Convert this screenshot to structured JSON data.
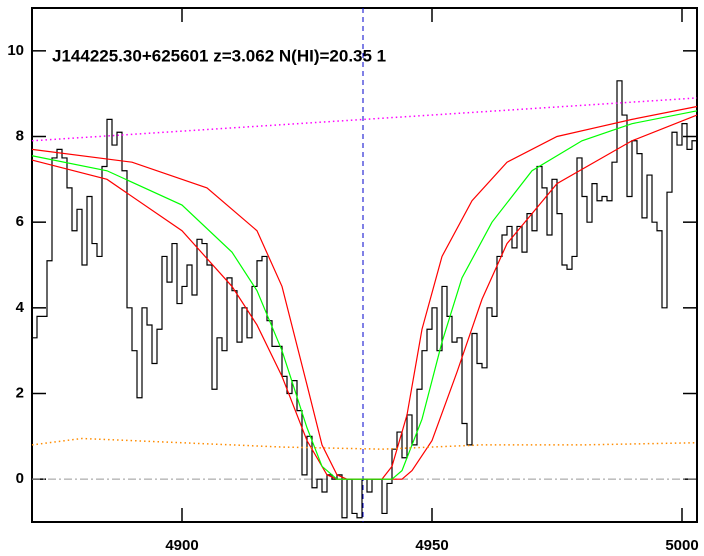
{
  "chart_data": {
    "type": "line",
    "title": "J144225.30+625601 z=3.062 N(HI)=20.35 1",
    "xlim": [
      4870,
      5003
    ],
    "ylim": [
      -1,
      11
    ],
    "xticks": [
      4900,
      4950,
      5000
    ],
    "yticks": [
      0,
      2,
      4,
      6,
      8,
      10
    ],
    "series": [
      {
        "color": "#000000",
        "line_style": "step",
        "x": [
          4870,
          4871,
          4872,
          4873,
          4874,
          4875,
          4876,
          4877,
          4878,
          4879,
          4880,
          4881,
          4882,
          4883,
          4884,
          4885,
          4886,
          4887,
          4888,
          4889,
          4890,
          4891,
          4892,
          4893,
          4894,
          4895,
          4896,
          4897,
          4898,
          4899,
          4900,
          4901,
          4902,
          4903,
          4904,
          4905,
          4906,
          4907,
          4908,
          4909,
          4910,
          4911,
          4912,
          4913,
          4914,
          4915,
          4916,
          4917,
          4918,
          4919,
          4920,
          4921,
          4922,
          4923,
          4924,
          4925,
          4926,
          4927,
          4928,
          4929,
          4930,
          4931,
          4932,
          4933,
          4934,
          4935,
          4936,
          4937,
          4938,
          4939,
          4940,
          4941,
          4942,
          4943,
          4944,
          4945,
          4946,
          4947,
          4948,
          4949,
          4950,
          4951,
          4952,
          4953,
          4954,
          4955,
          4956,
          4957,
          4958,
          4959,
          4960,
          4961,
          4962,
          4963,
          4964,
          4965,
          4966,
          4967,
          4968,
          4969,
          4970,
          4971,
          4972,
          4973,
          4974,
          4975,
          4976,
          4977,
          4978,
          4979,
          4980,
          4981,
          4982,
          4983,
          4984,
          4985,
          4986,
          4987,
          4988,
          4989,
          4990,
          4991,
          4992,
          4993,
          4994,
          4995,
          4996,
          4997,
          4998,
          4999,
          5000,
          5001,
          5002
        ],
        "values": [
          3.3,
          3.8,
          3.8,
          5.1,
          7.5,
          7.7,
          7.5,
          6.8,
          5.8,
          6.3,
          5.0,
          6.6,
          5.5,
          5.2,
          7.3,
          8.4,
          7.8,
          8.1,
          7.2,
          4.0,
          3.0,
          1.9,
          4.0,
          3.6,
          2.7,
          3.5,
          5.2,
          4.6,
          5.5,
          4.1,
          4.5,
          5.0,
          4.3,
          5.6,
          5.5,
          5.0,
          2.1,
          3.3,
          3.0,
          4.7,
          4.4,
          3.2,
          4.0,
          3.3,
          4.5,
          5.1,
          5.2,
          3.7,
          3.1,
          3.1,
          2.4,
          2.0,
          2.3,
          1.6,
          0.1,
          1.0,
          -0.2,
          0.0,
          -0.3,
          0.1,
          0.0,
          0.1,
          -0.9,
          0.0,
          -0.8,
          -0.9,
          0.0,
          -0.3,
          0.0,
          0.0,
          -0.8,
          -0.1,
          0.7,
          1.1,
          0.5,
          1.5,
          0.8,
          2.1,
          3.0,
          3.5,
          4.0,
          3.0,
          4.5,
          3.8,
          3.2,
          3.3,
          1.3,
          0.8,
          3.4,
          2.7,
          2.6,
          4.0,
          3.8,
          5.2,
          5.7,
          5.9,
          5.4,
          5.9,
          5.3,
          6.2,
          5.8,
          7.3,
          6.8,
          5.7,
          7.0,
          6.2,
          5.0,
          4.9,
          5.2,
          7.5,
          6.6,
          6.0,
          6.9,
          6.5,
          6.6,
          6.5,
          7.4,
          9.3,
          8.5,
          6.6,
          7.9,
          7.6,
          6.1,
          7.1,
          6.0,
          5.8,
          4.0,
          6.7,
          8.1,
          7.8,
          8.3,
          7.7,
          7.9
        ]
      },
      {
        "color": "#ff0000",
        "line_style": "solid",
        "x": [
          4870,
          4890,
          4905,
          4915,
          4920,
          4925,
          4928,
          4931,
          4933,
          4940,
          4942,
          4945,
          4948,
          4952,
          4958,
          4965,
          4975,
          4990,
          5003
        ],
        "values": [
          7.7,
          7.4,
          6.8,
          5.8,
          4.5,
          2.2,
          0.8,
          0.1,
          0,
          0,
          0.3,
          1.5,
          3.5,
          5.2,
          6.5,
          7.4,
          8.0,
          8.4,
          8.7
        ]
      },
      {
        "color": "#ff0000",
        "line_style": "solid",
        "x": [
          4870,
          4885,
          4900,
          4910,
          4915,
          4920,
          4925,
          4929,
          4931,
          4944,
          4946,
          4950,
          4955,
          4960,
          4965,
          4975,
          4990,
          5003
        ],
        "values": [
          7.45,
          7.0,
          5.8,
          4.5,
          3.6,
          2.4,
          0.9,
          0.1,
          0,
          0,
          0.2,
          0.9,
          2.5,
          4.2,
          5.5,
          6.9,
          7.9,
          8.5
        ]
      },
      {
        "color": "#00ff00",
        "line_style": "solid",
        "x": [
          4870,
          4885,
          4900,
          4910,
          4915,
          4920,
          4925,
          4928,
          4931,
          4942,
          4944,
          4948,
          4952,
          4956,
          4962,
          4970,
          4980,
          4990,
          5003
        ],
        "values": [
          7.55,
          7.2,
          6.4,
          5.3,
          4.4,
          3.0,
          1.2,
          0.3,
          0,
          0,
          0.2,
          1.4,
          3.2,
          4.7,
          6.0,
          7.2,
          7.9,
          8.3,
          8.6
        ]
      },
      {
        "color": "#ff00ff",
        "line_style": "dotted",
        "x": [
          4870,
          5003
        ],
        "values": [
          7.9,
          8.9
        ]
      },
      {
        "color": "#ff8c00",
        "line_style": "dotted",
        "x": [
          4870,
          4880,
          4900,
          4920,
          4940,
          4960,
          4980,
          5003
        ],
        "values": [
          0.8,
          0.95,
          0.85,
          0.75,
          0.7,
          0.8,
          0.8,
          0.85
        ]
      }
    ],
    "vlines": [
      {
        "x": 4936.2,
        "color": "#0000cc",
        "line_style": "dashed"
      }
    ],
    "hlines": [
      {
        "y": 0,
        "color": "#999999",
        "line_style": "dashdot"
      }
    ]
  }
}
